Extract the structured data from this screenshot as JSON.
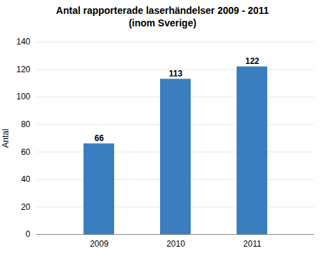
{
  "chart_data": {
    "type": "bar",
    "title": "Antal rapporterade laserhändelser 2009 - 2011",
    "subtitle": "(inom Sverige)",
    "y_label": "Antal",
    "categories": [
      "2009",
      "2010",
      "2011"
    ],
    "values": [
      66,
      113,
      122
    ],
    "color": "#3A7EBF",
    "ylim": [
      0,
      140
    ],
    "yticks": [
      0,
      20,
      40,
      60,
      80,
      100,
      120,
      140
    ],
    "grid": true,
    "data_labels": true
  }
}
